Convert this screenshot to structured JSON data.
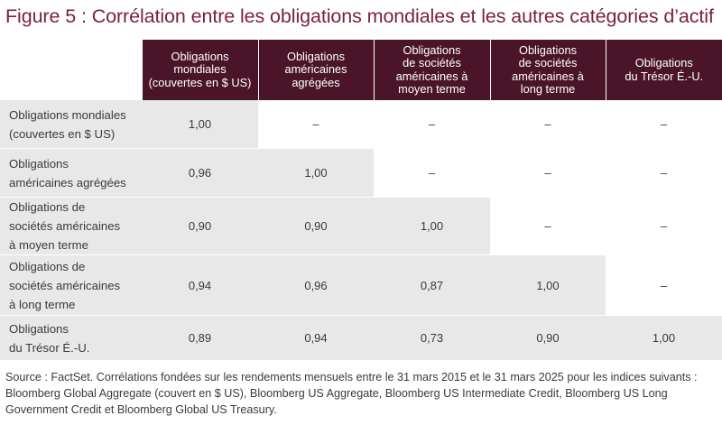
{
  "title": "Figure 5 : Corrélation entre les obligations mondiales et les autres catégories d’actif",
  "table": {
    "headers": [
      "Obligations\nmondiales\n(couvertes en $ US)",
      "Obligations\naméricaines\nagrégées",
      "Obligations\nde sociétés\naméricaines à\nmoyen terme",
      "Obligations\nde sociétés\naméricaines à\nlong terme",
      "Obligations\ndu Trésor É.-U."
    ],
    "rows": [
      {
        "label": "Obligations mondiales\n(couvertes en $ US)",
        "cells": [
          "1,00",
          "–",
          "–",
          "–",
          "–"
        ]
      },
      {
        "label": "Obligations\naméricaines agrégées",
        "cells": [
          "0,96",
          "1,00",
          "–",
          "–",
          "–"
        ]
      },
      {
        "label": "Obligations de\nsociétés américaines\nà moyen terme",
        "cells": [
          "0,90",
          "0,90",
          "1,00",
          "–",
          "–"
        ]
      },
      {
        "label": "Obligations de\nsociétés américaines\nà long terme",
        "cells": [
          "0,94",
          "0,96",
          "0,87",
          "1,00",
          "–"
        ]
      },
      {
        "label": "Obligations\ndu Trésor É.-U.",
        "cells": [
          "0,89",
          "0,94",
          "0,73",
          "0,90",
          "1,00"
        ]
      }
    ]
  },
  "source": "Source : FactSet. Corrélations fondées sur les rendements mensuels entre le 31 mars 2015 et le 31 mars 2025 pour les indices suivants : Bloomberg Global Aggregate (couvert en $ US), Bloomberg US Aggregate, Bloomberg US Intermediate Credit, Bloomberg US Long Government Credit et Bloomberg Global US Treasury.",
  "colors": {
    "title": "#7a1f3d",
    "header_background": "#4a1528",
    "cell_background": "#e8e8e8",
    "empty_cell": "#ffffff"
  }
}
